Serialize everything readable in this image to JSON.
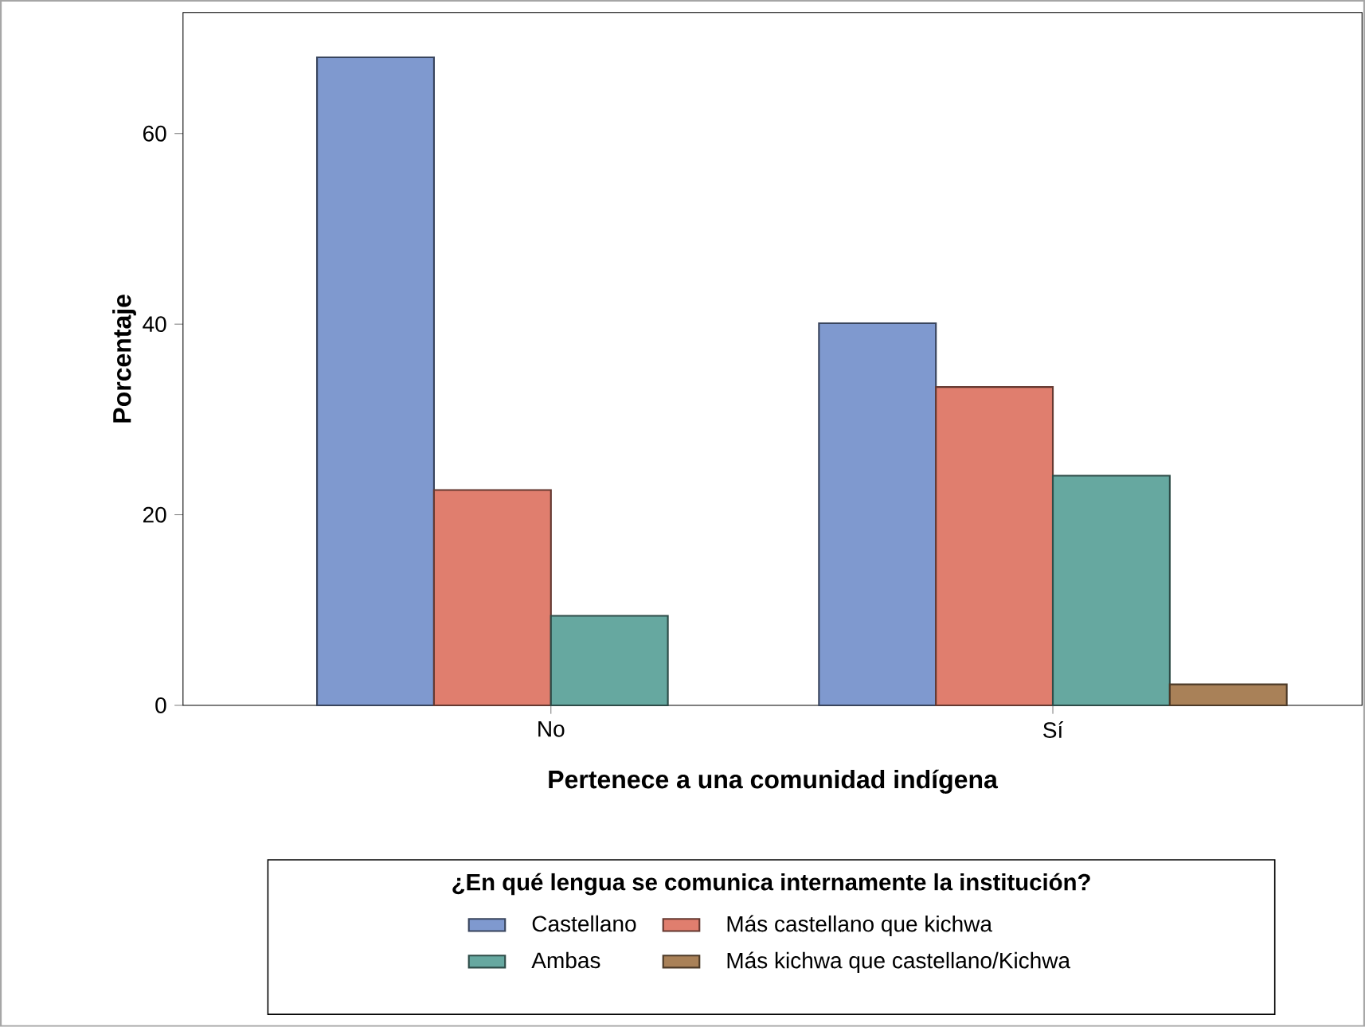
{
  "chart_data": {
    "type": "bar",
    "xlabel": "Pertenece a una comunidad indígena",
    "ylabel": "Porcentaje",
    "legend_title": "¿En qué lengua se comunica internamente la institución?",
    "categories": [
      "No",
      "Sí"
    ],
    "series": [
      {
        "name": "Castellano",
        "color": "#7f99cf",
        "values": [
          68.0,
          40.1
        ]
      },
      {
        "name": "Más castellano que kichwa",
        "color": "#e07e6e",
        "values": [
          22.6,
          33.4
        ]
      },
      {
        "name": "Ambas",
        "color": "#66a8a0",
        "values": [
          9.4,
          24.1
        ]
      },
      {
        "name": "Más kichwa que castellano/Kichwa",
        "color": "#a98158",
        "values": [
          null,
          2.2
        ]
      }
    ],
    "ylim": [
      0,
      72.7
    ],
    "yticks": [
      0,
      20,
      40,
      60
    ],
    "grid": false,
    "legend": "bottom"
  }
}
